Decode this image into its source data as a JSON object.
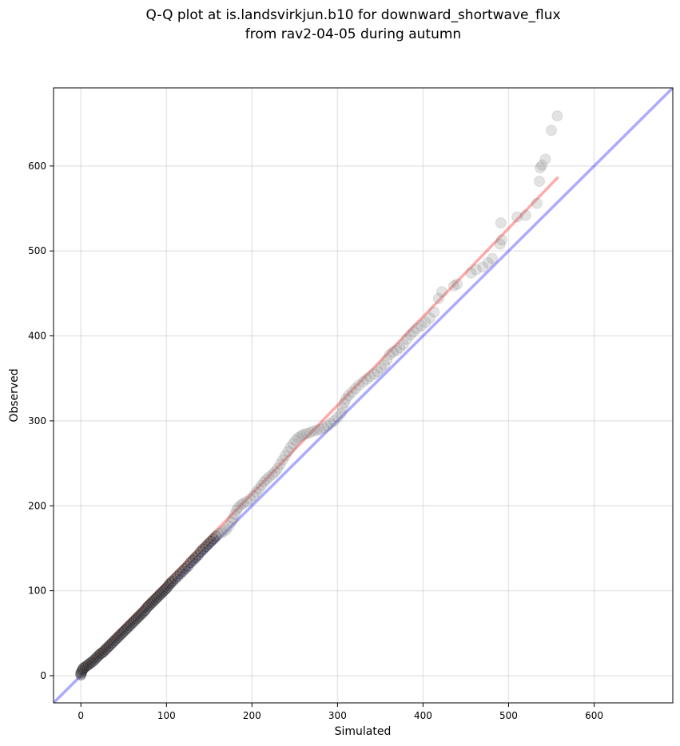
{
  "chart_data": {
    "type": "scatter",
    "title_lines": [
      "Q-Q plot at is.landsvirkjun.b10 for downward_shortwave_flux",
      "from rav2-04-05 during autumn"
    ],
    "xlabel": "Simulated",
    "ylabel": "Observed",
    "xlim": [
      -32,
      692
    ],
    "ylim": [
      -32,
      692
    ],
    "xticks": [
      0,
      100,
      200,
      300,
      400,
      500,
      600
    ],
    "yticks": [
      0,
      100,
      200,
      300,
      400,
      500,
      600
    ],
    "grid": true,
    "colors": {
      "points": "#808080",
      "reference_line": "#0000ff",
      "fit_line": "#ff0000",
      "center_curve": "#8b0000"
    },
    "reference_line": {
      "x": [
        -32,
        692
      ],
      "y": [
        -32,
        692
      ]
    },
    "fit_line": {
      "x": [
        0,
        558
      ],
      "y": [
        6,
        587
      ]
    },
    "points": [
      [
        0,
        1
      ],
      [
        0,
        3
      ],
      [
        1,
        5
      ],
      [
        2,
        7
      ],
      [
        3,
        9
      ],
      [
        5,
        10
      ],
      [
        7,
        12
      ],
      [
        9,
        13
      ],
      [
        11,
        15
      ],
      [
        13,
        16
      ],
      [
        15,
        18
      ],
      [
        17,
        20
      ],
      [
        19,
        22
      ],
      [
        21,
        24
      ],
      [
        23,
        26
      ],
      [
        25,
        27
      ],
      [
        27,
        29
      ],
      [
        29,
        31
      ],
      [
        31,
        33
      ],
      [
        33,
        35
      ],
      [
        35,
        37
      ],
      [
        37,
        39
      ],
      [
        39,
        41
      ],
      [
        41,
        43
      ],
      [
        43,
        45
      ],
      [
        45,
        47
      ],
      [
        47,
        49
      ],
      [
        49,
        51
      ],
      [
        51,
        53
      ],
      [
        53,
        55
      ],
      [
        55,
        57
      ],
      [
        57,
        59
      ],
      [
        59,
        61
      ],
      [
        61,
        63
      ],
      [
        63,
        65
      ],
      [
        65,
        67
      ],
      [
        67,
        69
      ],
      [
        69,
        71
      ],
      [
        71,
        73
      ],
      [
        73,
        75
      ],
      [
        75,
        77
      ],
      [
        77,
        80
      ],
      [
        79,
        82
      ],
      [
        81,
        84
      ],
      [
        83,
        86
      ],
      [
        85,
        88
      ],
      [
        87,
        90
      ],
      [
        89,
        92
      ],
      [
        91,
        94
      ],
      [
        93,
        96
      ],
      [
        95,
        98
      ],
      [
        97,
        100
      ],
      [
        99,
        102
      ],
      [
        101,
        104
      ],
      [
        103,
        107
      ],
      [
        105,
        109
      ],
      [
        107,
        111
      ],
      [
        110,
        114
      ],
      [
        113,
        117
      ],
      [
        116,
        120
      ],
      [
        119,
        123
      ],
      [
        122,
        126
      ],
      [
        125,
        129
      ],
      [
        128,
        133
      ],
      [
        131,
        136
      ],
      [
        134,
        139
      ],
      [
        137,
        142
      ],
      [
        140,
        146
      ],
      [
        143,
        149
      ],
      [
        146,
        152
      ],
      [
        149,
        155
      ],
      [
        152,
        158
      ],
      [
        155,
        161
      ],
      [
        158,
        164
      ],
      [
        161,
        167
      ],
      [
        164,
        168
      ],
      [
        167,
        170
      ],
      [
        170,
        172
      ],
      [
        173,
        176
      ],
      [
        176,
        181
      ],
      [
        178,
        185
      ],
      [
        180,
        190
      ],
      [
        182,
        195
      ],
      [
        184,
        198
      ],
      [
        187,
        201
      ],
      [
        190,
        203
      ],
      [
        194,
        205
      ],
      [
        198,
        208
      ],
      [
        202,
        212
      ],
      [
        205,
        216
      ],
      [
        208,
        220
      ],
      [
        211,
        224
      ],
      [
        214,
        228
      ],
      [
        217,
        231
      ],
      [
        220,
        234
      ],
      [
        224,
        237
      ],
      [
        227,
        240
      ],
      [
        230,
        244
      ],
      [
        233,
        249
      ],
      [
        236,
        254
      ],
      [
        239,
        259
      ],
      [
        242,
        264
      ],
      [
        245,
        269
      ],
      [
        248,
        273
      ],
      [
        251,
        277
      ],
      [
        254,
        280
      ],
      [
        257,
        282
      ],
      [
        260,
        284
      ],
      [
        264,
        285
      ],
      [
        268,
        286
      ],
      [
        272,
        288
      ],
      [
        276,
        289
      ],
      [
        280,
        290
      ],
      [
        284,
        292
      ],
      [
        288,
        294
      ],
      [
        292,
        297
      ],
      [
        296,
        300
      ],
      [
        300,
        304
      ],
      [
        304,
        309
      ],
      [
        306,
        315
      ],
      [
        308,
        321
      ],
      [
        310,
        326
      ],
      [
        313,
        330
      ],
      [
        317,
        334
      ],
      [
        321,
        338
      ],
      [
        325,
        342
      ],
      [
        330,
        346
      ],
      [
        334,
        349
      ],
      [
        338,
        352
      ],
      [
        343,
        355
      ],
      [
        347,
        358
      ],
      [
        351,
        362
      ],
      [
        355,
        366
      ],
      [
        358,
        372
      ],
      [
        361,
        378
      ],
      [
        365,
        381
      ],
      [
        369,
        383
      ],
      [
        373,
        386
      ],
      [
        377,
        390
      ],
      [
        381,
        396
      ],
      [
        385,
        401
      ],
      [
        389,
        405
      ],
      [
        393,
        409
      ],
      [
        398,
        412
      ],
      [
        403,
        416
      ],
      [
        408,
        421
      ],
      [
        413,
        428
      ],
      [
        418,
        444
      ],
      [
        422,
        452
      ],
      [
        436,
        459
      ],
      [
        440,
        461
      ],
      [
        456,
        474
      ],
      [
        462,
        478
      ],
      [
        470,
        481
      ],
      [
        476,
        486
      ],
      [
        481,
        491
      ],
      [
        490,
        508
      ],
      [
        492,
        513
      ],
      [
        491,
        533
      ],
      [
        510,
        540
      ],
      [
        520,
        542
      ],
      [
        533,
        556
      ],
      [
        536,
        582
      ],
      [
        537,
        598
      ],
      [
        539,
        601
      ],
      [
        543,
        608
      ],
      [
        550,
        642
      ],
      [
        557,
        659
      ]
    ],
    "center_curve": [
      [
        0,
        1
      ],
      [
        10,
        14
      ],
      [
        25,
        27
      ],
      [
        40,
        42
      ],
      [
        55,
        57
      ],
      [
        70,
        72
      ],
      [
        85,
        88
      ],
      [
        100,
        103
      ],
      [
        115,
        119
      ],
      [
        130,
        135
      ],
      [
        145,
        150
      ],
      [
        160,
        165
      ]
    ]
  }
}
